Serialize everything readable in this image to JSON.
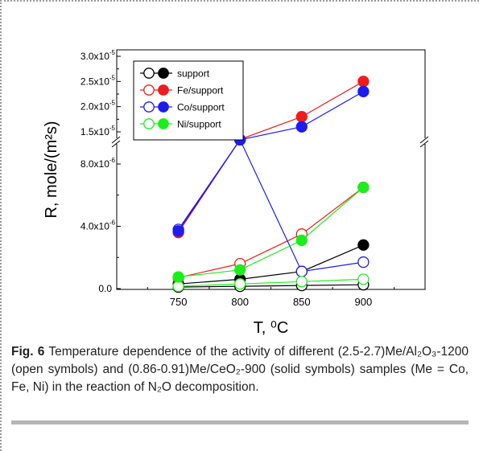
{
  "chart_data": {
    "type": "line",
    "xlabel": "T, ⁰C",
    "ylabel": "R, mole/(m²s)",
    "x": [
      750,
      800,
      850,
      900
    ],
    "xlim": [
      700,
      950
    ],
    "y_axis_break": true,
    "ylim_lower": [
      0,
      1e-05
    ],
    "ylim_upper": [
      1.4e-05,
      3e-05
    ],
    "ytick_labels_lower": [
      "0.0",
      "4.0x10",
      "8.0x10"
    ],
    "ytick_exponents_lower": [
      "",
      "-6",
      "-6"
    ],
    "ytick_values_lower": [
      0,
      4e-06,
      8e-06
    ],
    "ytick_labels_upper": [
      "1.5x10",
      "2.0x10",
      "2.5x10",
      "3.0x10"
    ],
    "ytick_exponents_upper": [
      "-5",
      "-5",
      "-5",
      "-5"
    ],
    "ytick_values_upper": [
      1.5e-05,
      2e-05,
      2.5e-05,
      3e-05
    ],
    "legend_position": "top-left",
    "series": [
      {
        "name": "support",
        "color": "#000000",
        "fill": "open",
        "values": [
          1e-07,
          1.5e-07,
          2e-07,
          2.5e-07
        ]
      },
      {
        "name": "support",
        "color": "#000000",
        "fill": "solid",
        "values": [
          3e-07,
          6e-07,
          1.1e-06,
          2.8e-06
        ]
      },
      {
        "name": "Fe/support",
        "color": "#ee1c1c",
        "fill": "open",
        "values": [
          7e-07,
          1.6e-06,
          3.5e-06,
          6.5e-06
        ]
      },
      {
        "name": "Fe/support",
        "color": "#ee1c1c",
        "fill": "solid",
        "values": [
          3.6e-06,
          1.1e-05,
          1.8e-05,
          2.5e-05
        ]
      },
      {
        "name": "Co/support",
        "color": "#1c1cee",
        "fill": "open",
        "values": [
          3.8e-06,
          1.05e-05,
          1.1e-06,
          1.7e-06
        ]
      },
      {
        "name": "Co/support",
        "color": "#1c1cee",
        "fill": "solid",
        "values": [
          3.7e-06,
          1.05e-05,
          1.6e-05,
          2.3e-05
        ]
      },
      {
        "name": "Ni/support",
        "color": "#1cee1c",
        "fill": "open",
        "values": [
          1.5e-07,
          3e-07,
          4.5e-07,
          6e-07
        ]
      },
      {
        "name": "Ni/support",
        "color": "#1cee1c",
        "fill": "solid",
        "values": [
          7.5e-07,
          1.2e-06,
          3.1e-06,
          6.5e-06
        ]
      }
    ],
    "legend": [
      {
        "label": "support",
        "color": "#000000"
      },
      {
        "label": "Fe/support",
        "color": "#ee1c1c"
      },
      {
        "label": "Co/support",
        "color": "#1c1cee"
      },
      {
        "label": "Ni/support",
        "color": "#1cee1c"
      }
    ]
  },
  "caption": {
    "label": "Fig. 6",
    "text": " Temperature dependence of the activity of different (2.5-2.7)Me/Al₂O₃-1200 (open symbols) and (0.86-0.91)Me/CeO₂-900 (solid symbols) samples (Me = Co, Fe, Ni) in the reaction of N₂O decomposition."
  }
}
